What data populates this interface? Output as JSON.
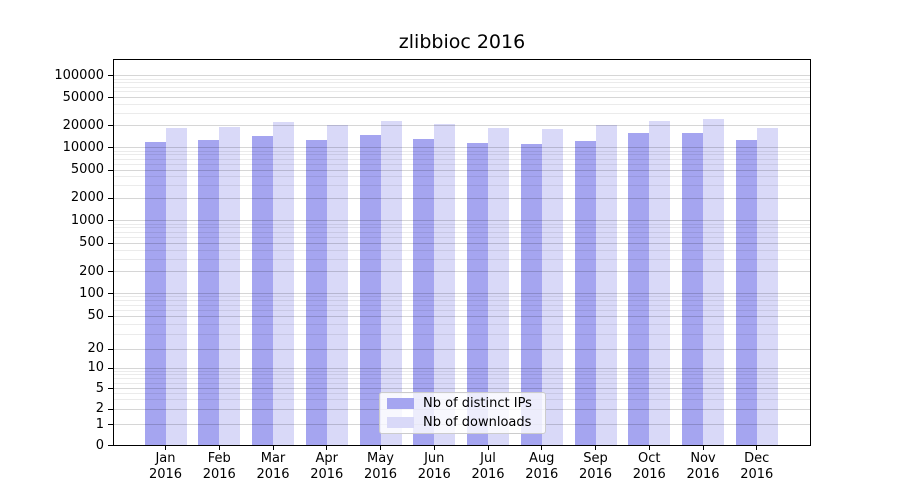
{
  "figure": {
    "title": "zlibbioc 2016"
  },
  "chart_data": {
    "type": "bar",
    "title": "zlibbioc 2016",
    "x_categories": [
      {
        "month": "Jan",
        "year": "2016"
      },
      {
        "month": "Feb",
        "year": "2016"
      },
      {
        "month": "Mar",
        "year": "2016"
      },
      {
        "month": "Apr",
        "year": "2016"
      },
      {
        "month": "May",
        "year": "2016"
      },
      {
        "month": "Jun",
        "year": "2016"
      },
      {
        "month": "Jul",
        "year": "2016"
      },
      {
        "month": "Aug",
        "year": "2016"
      },
      {
        "month": "Sep",
        "year": "2016"
      },
      {
        "month": "Oct",
        "year": "2016"
      },
      {
        "month": "Nov",
        "year": "2016"
      },
      {
        "month": "Dec",
        "year": "2016"
      }
    ],
    "series": [
      {
        "name": "Nb of distinct IPs",
        "color": "#a5a5f0",
        "values": [
          12100,
          12750,
          14450,
          12750,
          14900,
          13050,
          11500,
          11150,
          12250,
          15650,
          15850,
          12650
        ]
      },
      {
        "name": "Nb of downloads",
        "color": "#d9d9f8",
        "values": [
          18400,
          19400,
          22800,
          20500,
          23550,
          21150,
          18400,
          17900,
          20300,
          23300,
          24700,
          18400
        ]
      }
    ],
    "y_axis": {
      "scale": "symlog",
      "tick_labels": [
        100000,
        50000,
        20000,
        10000,
        5000,
        2000,
        1000,
        500,
        200,
        100,
        50,
        20,
        10,
        5,
        2,
        1,
        0
      ],
      "range_bottom": 0
    },
    "legend": {
      "position": "lower center-left inside plot"
    },
    "grid": {
      "horizontal_major": true,
      "horizontal_minor": true
    }
  }
}
